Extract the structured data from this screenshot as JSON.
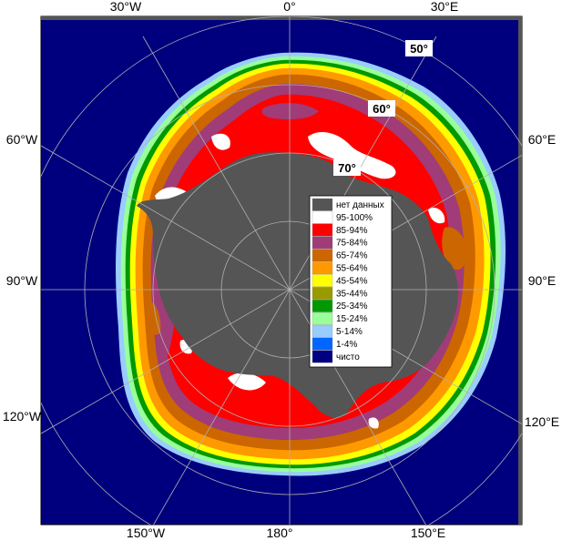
{
  "map": {
    "longitude_labels": {
      "top": [
        "30°W",
        "0°",
        "30°E"
      ],
      "left": [
        "60°W",
        "90°W",
        "120°W"
      ],
      "right": [
        "60°E",
        "90°E",
        "120°E"
      ],
      "bottom": [
        "150°W",
        "180°",
        "150°E"
      ]
    },
    "latitude_labels": [
      "50°",
      "60°",
      "70°"
    ],
    "colors": {
      "ocean": "#00007f",
      "no_data": "#555555",
      "graticule": "#b0b0b0"
    }
  },
  "legend": {
    "items": [
      {
        "label": "нет данных",
        "color": "#555555"
      },
      {
        "label": "95-100%",
        "color": "#ffffff"
      },
      {
        "label": "85-94%",
        "color": "#ff0000"
      },
      {
        "label": "75-84%",
        "color": "#a03c78"
      },
      {
        "label": "65-74%",
        "color": "#cc6600"
      },
      {
        "label": "55-64%",
        "color": "#ff9900"
      },
      {
        "label": "45-54%",
        "color": "#ffff00"
      },
      {
        "label": "35-44%",
        "color": "#999900"
      },
      {
        "label": "25-34%",
        "color": "#009900"
      },
      {
        "label": "15-24%",
        "color": "#99ff99"
      },
      {
        "label": "5-14%",
        "color": "#99ccff"
      },
      {
        "label": "1-4%",
        "color": "#0066ff"
      },
      {
        "label": "чисто",
        "color": "#000080"
      }
    ]
  }
}
